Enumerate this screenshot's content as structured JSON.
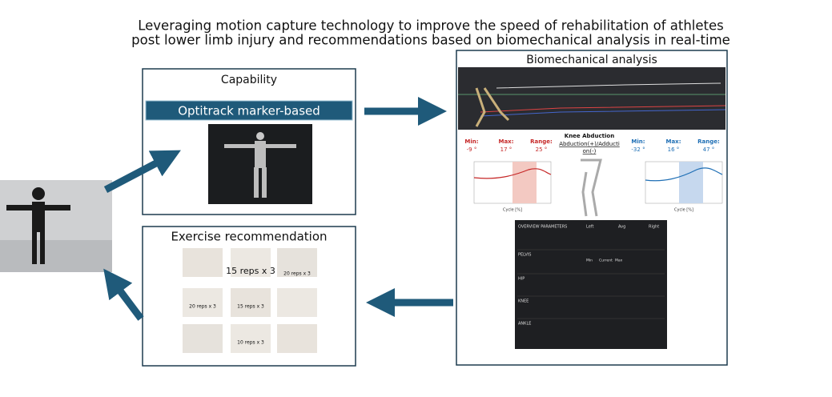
{
  "title": {
    "line1": "Leveraging motion capture technology to improve the speed of rehabilitation of athletes",
    "line2": "post lower limb injury and recommendations based on biomechanical analysis in real-time"
  },
  "capability": {
    "title": "Capability",
    "method": "Optitrack marker-based"
  },
  "exercise": {
    "title": "Exercise recommendation",
    "captions": [
      "15 reps x 3",
      "20 reps x 3",
      "20 reps x 3",
      "15 reps x 3",
      "10 reps x 3"
    ]
  },
  "analysis": {
    "title": "Biomechanical analysis",
    "knee": {
      "name": "Knee Abduction",
      "axis_line1": "Abduction(+)/Adducti",
      "axis_line2": "on(-)",
      "left": {
        "min_label": "Min:",
        "min": "-9 °",
        "max_label": "Max:",
        "max": "17 °",
        "range_label": "Range:",
        "range": "25 °"
      },
      "right": {
        "min_label": "Min:",
        "min": "-32 °",
        "max_label": "Max:",
        "max": "16 °",
        "range_label": "Range:",
        "range": "47 °"
      },
      "x_axis": "Cycle [%]"
    },
    "table": {
      "header": [
        "OVERVIEW PARAMETERS",
        "Left",
        "Avg",
        "Right"
      ],
      "sections": [
        "PELVIS",
        "HIP",
        "KNEE",
        "ANKLE"
      ],
      "columns": [
        "Min",
        "Current",
        "Max"
      ]
    }
  }
}
